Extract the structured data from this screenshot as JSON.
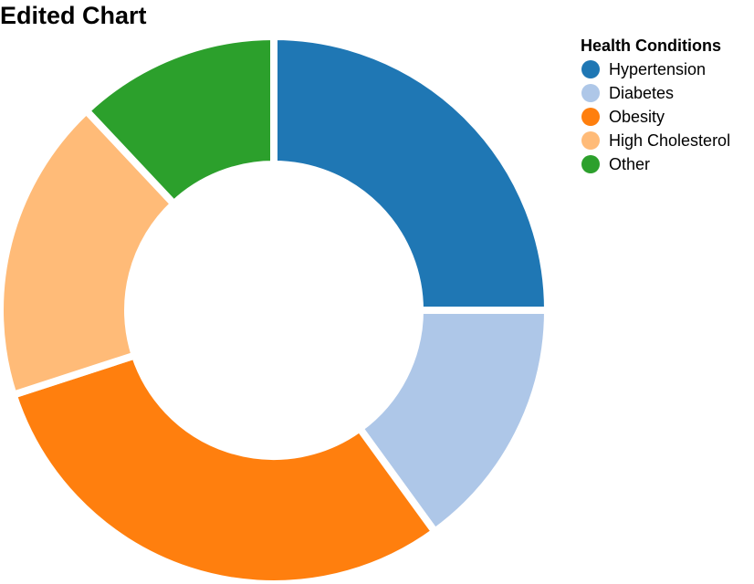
{
  "chart_data": {
    "type": "pie",
    "variant": "donut",
    "title": "Edited Chart",
    "legend": {
      "title": "Health Conditions",
      "placement": "top-right"
    },
    "categories": [
      "Hypertension",
      "Diabetes",
      "Obesity",
      "High Cholesterol",
      "Other"
    ],
    "values": [
      25,
      15,
      30,
      18,
      12
    ],
    "colors": [
      "#1f77b4",
      "#aec7e8",
      "#ff7f0e",
      "#ffbb78",
      "#2ca02c"
    ]
  }
}
